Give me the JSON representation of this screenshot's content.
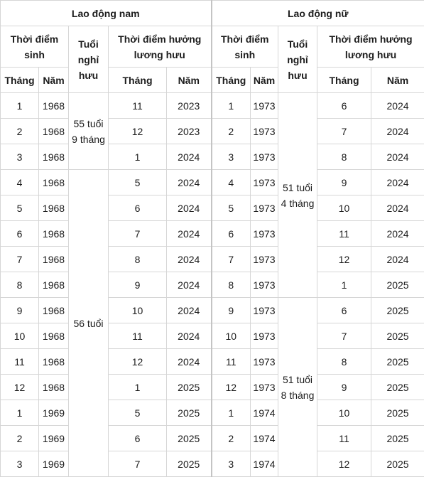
{
  "headers": {
    "male_group": "Lao động nam",
    "female_group": "Lao động nữ",
    "birth_time": "Thời điểm sinh",
    "retirement_age": "Tuổi nghỉ hưu",
    "pension_time": "Thời điểm hưởng lương hưu",
    "month": "Tháng",
    "year": "Năm"
  },
  "male_ages": [
    "55 tuổi 9 tháng",
    "56 tuổi"
  ],
  "female_ages": [
    "51 tuổi 4 tháng",
    "51 tuổi 8 tháng"
  ],
  "rows": [
    {
      "m_birth_month": "1",
      "m_birth_year": "1968",
      "m_pen_month": "11",
      "m_pen_year": "2023",
      "f_birth_month": "1",
      "f_birth_year": "1973",
      "f_pen_month": "6",
      "f_pen_year": "2024"
    },
    {
      "m_birth_month": "2",
      "m_birth_year": "1968",
      "m_pen_month": "12",
      "m_pen_year": "2023",
      "f_birth_month": "2",
      "f_birth_year": "1973",
      "f_pen_month": "7",
      "f_pen_year": "2024"
    },
    {
      "m_birth_month": "3",
      "m_birth_year": "1968",
      "m_pen_month": "1",
      "m_pen_year": "2024",
      "f_birth_month": "3",
      "f_birth_year": "1973",
      "f_pen_month": "8",
      "f_pen_year": "2024"
    },
    {
      "m_birth_month": "4",
      "m_birth_year": "1968",
      "m_pen_month": "5",
      "m_pen_year": "2024",
      "f_birth_month": "4",
      "f_birth_year": "1973",
      "f_pen_month": "9",
      "f_pen_year": "2024"
    },
    {
      "m_birth_month": "5",
      "m_birth_year": "1968",
      "m_pen_month": "6",
      "m_pen_year": "2024",
      "f_birth_month": "5",
      "f_birth_year": "1973",
      "f_pen_month": "10",
      "f_pen_year": "2024"
    },
    {
      "m_birth_month": "6",
      "m_birth_year": "1968",
      "m_pen_month": "7",
      "m_pen_year": "2024",
      "f_birth_month": "6",
      "f_birth_year": "1973",
      "f_pen_month": "11",
      "f_pen_year": "2024"
    },
    {
      "m_birth_month": "7",
      "m_birth_year": "1968",
      "m_pen_month": "8",
      "m_pen_year": "2024",
      "f_birth_month": "7",
      "f_birth_year": "1973",
      "f_pen_month": "12",
      "f_pen_year": "2024"
    },
    {
      "m_birth_month": "8",
      "m_birth_year": "1968",
      "m_pen_month": "9",
      "m_pen_year": "2024",
      "f_birth_month": "8",
      "f_birth_year": "1973",
      "f_pen_month": "1",
      "f_pen_year": "2025"
    },
    {
      "m_birth_month": "9",
      "m_birth_year": "1968",
      "m_pen_month": "10",
      "m_pen_year": "2024",
      "f_birth_month": "9",
      "f_birth_year": "1973",
      "f_pen_month": "6",
      "f_pen_year": "2025"
    },
    {
      "m_birth_month": "10",
      "m_birth_year": "1968",
      "m_pen_month": "11",
      "m_pen_year": "2024",
      "f_birth_month": "10",
      "f_birth_year": "1973",
      "f_pen_month": "7",
      "f_pen_year": "2025"
    },
    {
      "m_birth_month": "11",
      "m_birth_year": "1968",
      "m_pen_month": "12",
      "m_pen_year": "2024",
      "f_birth_month": "11",
      "f_birth_year": "1973",
      "f_pen_month": "8",
      "f_pen_year": "2025"
    },
    {
      "m_birth_month": "12",
      "m_birth_year": "1968",
      "m_pen_month": "1",
      "m_pen_year": "2025",
      "f_birth_month": "12",
      "f_birth_year": "1973",
      "f_pen_month": "9",
      "f_pen_year": "2025"
    },
    {
      "m_birth_month": "1",
      "m_birth_year": "1969",
      "m_pen_month": "5",
      "m_pen_year": "2025",
      "f_birth_month": "1",
      "f_birth_year": "1974",
      "f_pen_month": "10",
      "f_pen_year": "2025"
    },
    {
      "m_birth_month": "2",
      "m_birth_year": "1969",
      "m_pen_month": "6",
      "m_pen_year": "2025",
      "f_birth_month": "2",
      "f_birth_year": "1974",
      "f_pen_month": "11",
      "f_pen_year": "2025"
    },
    {
      "m_birth_month": "3",
      "m_birth_year": "1969",
      "m_pen_month": "7",
      "m_pen_year": "2025",
      "f_birth_month": "3",
      "f_birth_year": "1974",
      "f_pen_month": "12",
      "f_pen_year": "2025"
    }
  ]
}
